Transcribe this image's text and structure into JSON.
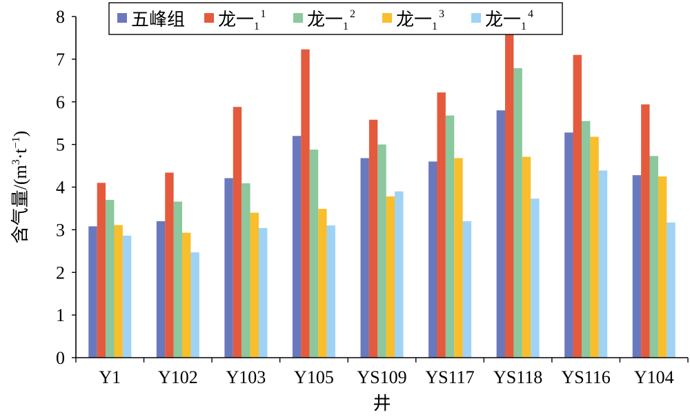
{
  "chart_data": {
    "type": "bar",
    "categories": [
      "Y1",
      "Y102",
      "Y103",
      "Y105",
      "YS109",
      "YS117",
      "YS118",
      "YS116",
      "Y104"
    ],
    "series": [
      {
        "name": "五峰组",
        "sub": "",
        "sup": "",
        "color": "#6a78bd",
        "values": [
          3.08,
          3.2,
          4.21,
          5.2,
          4.68,
          4.6,
          5.8,
          5.28,
          4.28
        ]
      },
      {
        "name": "龙一",
        "sub": "1",
        "sup": "1",
        "color": "#e55a3d",
        "values": [
          4.1,
          4.34,
          5.88,
          7.23,
          5.58,
          6.22,
          7.6,
          7.1,
          5.94
        ]
      },
      {
        "name": "龙一",
        "sub": "1",
        "sup": "2",
        "color": "#8cc79d",
        "values": [
          3.7,
          3.66,
          4.09,
          4.88,
          5.0,
          5.68,
          6.79,
          5.55,
          4.73
        ]
      },
      {
        "name": "龙一",
        "sub": "1",
        "sup": "3",
        "color": "#f8be2c",
        "values": [
          3.11,
          2.93,
          3.4,
          3.49,
          3.78,
          4.68,
          4.71,
          5.18,
          4.25
        ]
      },
      {
        "name": "龙一",
        "sub": "1",
        "sup": "4",
        "color": "#9fd3f5",
        "values": [
          2.86,
          2.47,
          3.04,
          3.1,
          3.9,
          3.2,
          3.73,
          4.39,
          3.17
        ]
      }
    ],
    "xlabel": "井",
    "ylabel_main": "含气量/(m",
    "ylabel_sup1": "3",
    "ylabel_mid": "·t",
    "ylabel_sup2": "−1",
    "ylabel_end": ")",
    "ylim": [
      0,
      8
    ],
    "yticks": [
      "0",
      "1",
      "2",
      "3",
      "4",
      "5",
      "6",
      "7",
      "8"
    ],
    "grid": false,
    "legend_position": "top"
  }
}
